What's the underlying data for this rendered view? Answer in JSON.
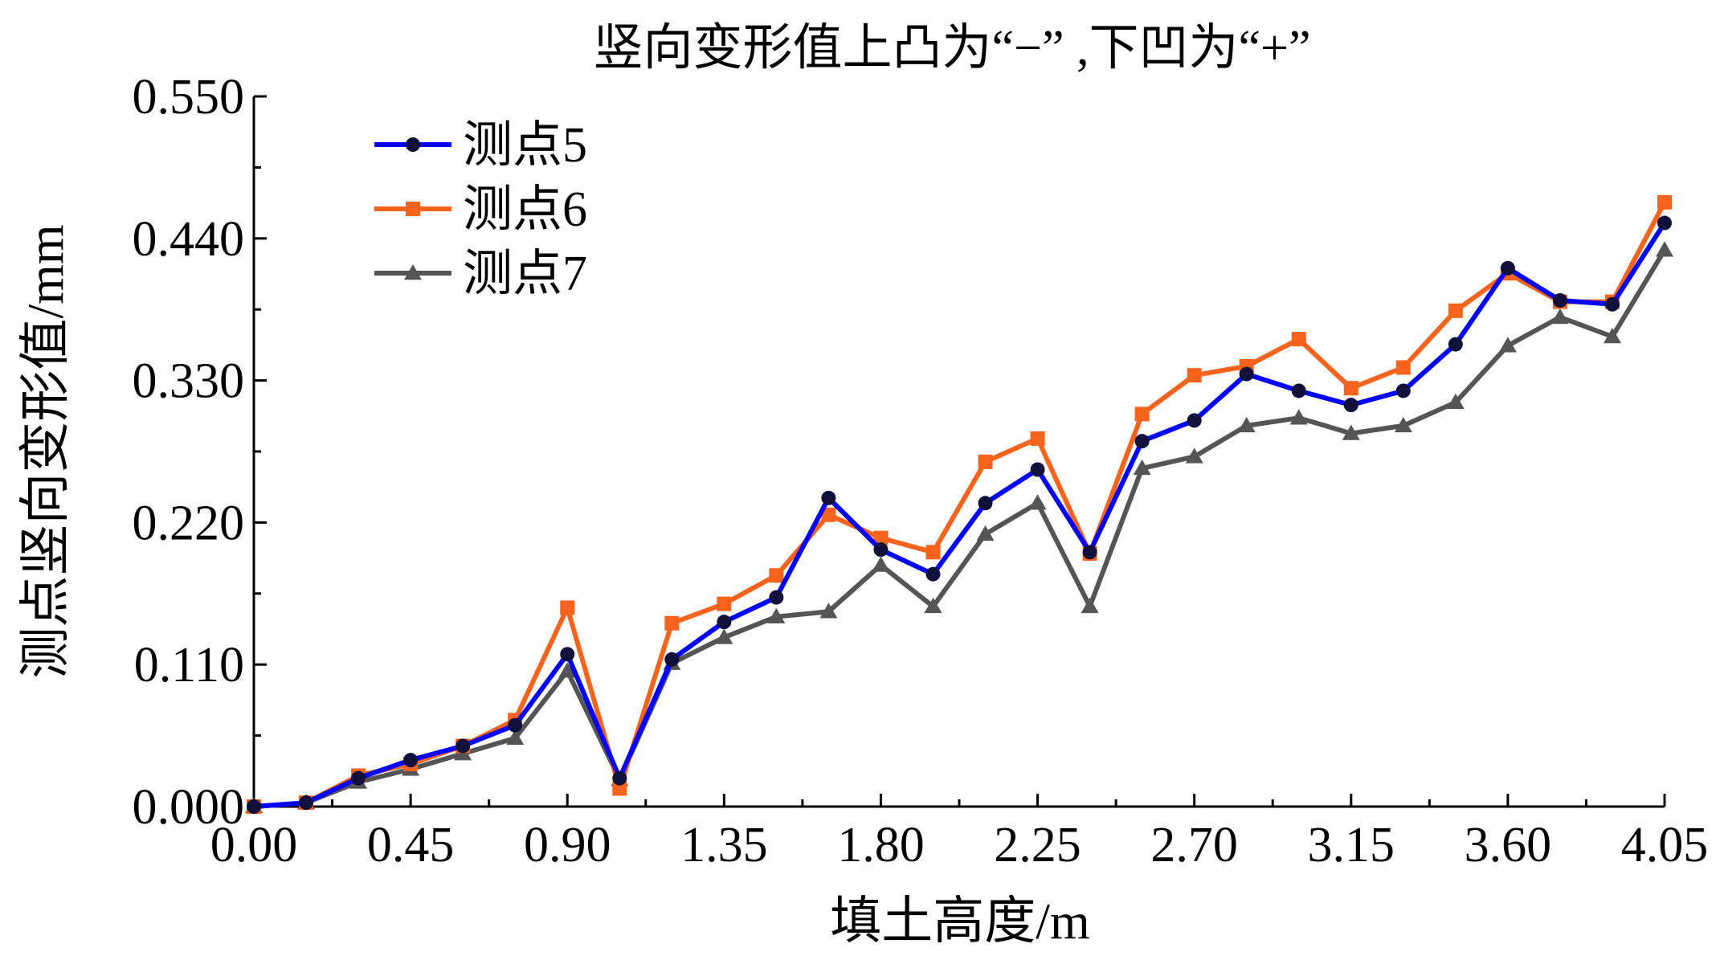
{
  "chart_data": {
    "type": "line",
    "title": "竖向变形值上凸为“−” ,下凹为“+”",
    "xlabel": "填土高度/m",
    "ylabel": "测点竖向变形值/mm",
    "xlim": [
      0,
      4.05
    ],
    "ylim": [
      0,
      0.55
    ],
    "xticks": [
      "0.00",
      "0.45",
      "0.90",
      "1.35",
      "1.80",
      "2.25",
      "2.70",
      "3.15",
      "3.60",
      "4.05"
    ],
    "yticks": [
      "0.000",
      "0.110",
      "0.220",
      "0.330",
      "0.440",
      "0.550"
    ],
    "grid": false,
    "legend_position": "top-left",
    "x": [
      0.0,
      0.15,
      0.3,
      0.45,
      0.6,
      0.75,
      0.9,
      1.05,
      1.2,
      1.35,
      1.5,
      1.65,
      1.8,
      1.95,
      2.1,
      2.25,
      2.4,
      2.55,
      2.7,
      2.85,
      3.0,
      3.15,
      3.3,
      3.45,
      3.6,
      3.75,
      3.9,
      4.05
    ],
    "series": [
      {
        "name": "测点5",
        "color": "#0000ff",
        "marker_color": "#10103a",
        "marker": "circle",
        "values": [
          0.0,
          0.003,
          0.022,
          0.036,
          0.047,
          0.063,
          0.118,
          0.022,
          0.114,
          0.143,
          0.162,
          0.239,
          0.199,
          0.18,
          0.235,
          0.261,
          0.197,
          0.283,
          0.299,
          0.335,
          0.322,
          0.311,
          0.322,
          0.358,
          0.417,
          0.392,
          0.389,
          0.452
        ]
      },
      {
        "name": "测点6",
        "color": "#f5631c",
        "marker_color": "#f5631c",
        "marker": "square",
        "values": [
          0.0,
          0.003,
          0.024,
          0.033,
          0.047,
          0.067,
          0.154,
          0.014,
          0.142,
          0.157,
          0.179,
          0.226,
          0.208,
          0.197,
          0.267,
          0.285,
          0.196,
          0.304,
          0.334,
          0.341,
          0.362,
          0.324,
          0.34,
          0.384,
          0.413,
          0.391,
          0.391,
          0.468
        ]
      },
      {
        "name": "测点7",
        "color": "#555555",
        "marker_color": "#555555",
        "marker": "triangle",
        "values": [
          0.0,
          0.003,
          0.019,
          0.029,
          0.041,
          0.053,
          0.105,
          0.021,
          0.111,
          0.131,
          0.147,
          0.151,
          0.187,
          0.155,
          0.211,
          0.235,
          0.155,
          0.262,
          0.271,
          0.295,
          0.301,
          0.289,
          0.295,
          0.313,
          0.357,
          0.379,
          0.364,
          0.431
        ]
      }
    ]
  }
}
